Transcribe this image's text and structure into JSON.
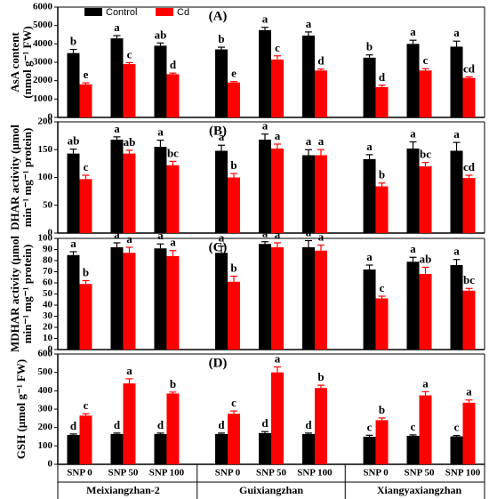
{
  "chart_data": [
    {
      "type": "bar",
      "panel_label": "(A)",
      "ylabel": [
        "AsA content",
        "(nmol g⁻¹ FW)"
      ],
      "ylim": [
        0,
        6000
      ],
      "yticks": [
        0,
        1000,
        2000,
        3000,
        4000,
        5000,
        6000
      ],
      "series": [
        {
          "name": "Control",
          "color": "#000000",
          "values": [
            3500,
            4300,
            3900,
            3700,
            4750,
            4450,
            3250,
            4000,
            3850
          ],
          "errors": [
            200,
            150,
            150,
            120,
            150,
            200,
            150,
            200,
            300
          ],
          "letters": [
            "b",
            "a",
            "ab",
            "b",
            "a",
            "a",
            "b",
            "a",
            "a"
          ]
        },
        {
          "name": "Cd",
          "color": "#ff0000",
          "values": [
            1800,
            2900,
            2350,
            1900,
            3150,
            2550,
            1650,
            2550,
            2150
          ],
          "errors": [
            80,
            80,
            60,
            50,
            200,
            80,
            100,
            100,
            60
          ],
          "letters": [
            "e",
            "c",
            "d",
            "e",
            "c",
            "d",
            "d",
            "c",
            "cd"
          ]
        }
      ]
    },
    {
      "type": "bar",
      "panel_label": "(B)",
      "ylabel": [
        "DHAR activity (µmol",
        "min⁻¹ mg⁻¹ protein)"
      ],
      "ylim": [
        0,
        200
      ],
      "yticks": [
        0,
        50,
        100,
        150,
        200
      ],
      "series": [
        {
          "color": "#000000",
          "values": [
            143,
            168,
            155,
            148,
            168,
            140,
            133,
            152,
            148
          ],
          "errors": [
            8,
            5,
            12,
            10,
            10,
            10,
            8,
            12,
            15
          ],
          "letters": [
            "ab",
            "a",
            "a",
            "a",
            "a",
            "a",
            "a",
            "a",
            "a"
          ]
        },
        {
          "color": "#ff0000",
          "values": [
            97,
            143,
            122,
            100,
            152,
            140,
            84,
            120,
            99
          ],
          "errors": [
            7,
            6,
            7,
            7,
            8,
            10,
            6,
            7,
            5
          ],
          "letters": [
            "c",
            "ab",
            "bc",
            "b",
            "a",
            "a",
            "b",
            "bc",
            "cd"
          ]
        }
      ]
    },
    {
      "type": "bar",
      "panel_label": "(C)",
      "ylabel": [
        "MDHAR activity (µmol",
        "min⁻¹ mg⁻¹ protein)"
      ],
      "ylim": [
        0,
        100
      ],
      "yticks": [
        0,
        10,
        20,
        30,
        40,
        50,
        60,
        70,
        80,
        90,
        100
      ],
      "series": [
        {
          "color": "#000000",
          "values": [
            85,
            92,
            91,
            87,
            95,
            92,
            72,
            79,
            76
          ],
          "errors": [
            3,
            4,
            4,
            6,
            2,
            6,
            4,
            4,
            5
          ],
          "letters": [
            "a",
            "a",
            "a",
            "a",
            "a",
            "a",
            "a",
            "a",
            "a"
          ]
        },
        {
          "color": "#ff0000",
          "values": [
            59,
            87,
            84,
            61,
            92,
            89,
            46,
            68,
            53
          ],
          "errors": [
            3,
            5,
            5,
            5,
            4,
            5,
            2,
            6,
            2
          ],
          "letters": [
            "b",
            "a",
            "a",
            "b",
            "a",
            "a",
            "c",
            "ab",
            "bc"
          ]
        }
      ]
    },
    {
      "type": "bar",
      "panel_label": "(D)",
      "ylabel": [
        "GSH (µmol g⁻¹ FW)"
      ],
      "ylim": [
        0,
        600
      ],
      "yticks": [
        0,
        100,
        200,
        300,
        400,
        500,
        600
      ],
      "categories": [
        "SNP 0",
        "SNP 50",
        "SNP 100",
        "SNP 0",
        "SNP 50",
        "SNP 100",
        "SNP 0",
        "SNP 50",
        "SNP 100"
      ],
      "groups": [
        "Meixiangzhan-2",
        "Guixiangzhan",
        "Xiangyaxiangzhan"
      ],
      "series": [
        {
          "color": "#000000",
          "values": [
            160,
            165,
            165,
            165,
            170,
            165,
            150,
            155,
            152
          ],
          "errors": [
            5,
            5,
            5,
            5,
            8,
            5,
            8,
            5,
            5
          ],
          "letters": [
            "d",
            "d",
            "d",
            "d",
            "d",
            "d",
            "c",
            "c",
            "c"
          ]
        },
        {
          "color": "#ff0000",
          "values": [
            265,
            440,
            385,
            275,
            500,
            415,
            240,
            375,
            335
          ],
          "errors": [
            10,
            25,
            8,
            15,
            30,
            15,
            12,
            20,
            15
          ],
          "letters": [
            "c",
            "a",
            "b",
            "c",
            "a",
            "b",
            "b",
            "a",
            "a"
          ]
        }
      ]
    }
  ]
}
